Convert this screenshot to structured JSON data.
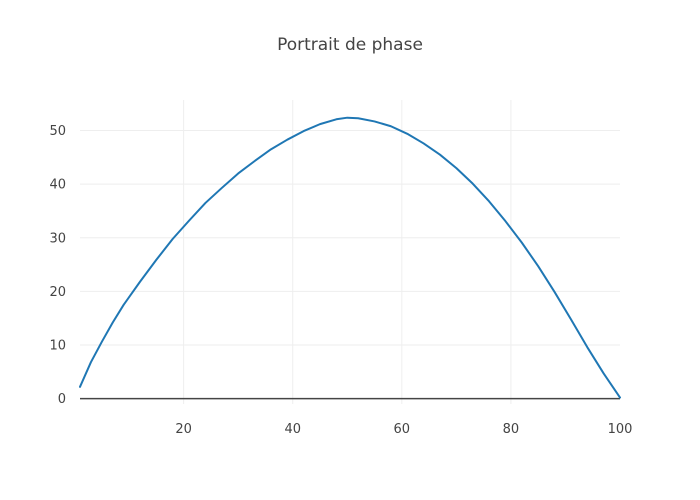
{
  "chart_data": {
    "type": "line",
    "title": "Portrait de phase",
    "xlabel": "",
    "ylabel": "",
    "xlim": [
      1,
      100
    ],
    "ylim": [
      -1,
      55.7
    ],
    "x_ticks": [
      20,
      40,
      60,
      80,
      100
    ],
    "y_ticks": [
      0,
      10,
      20,
      30,
      40,
      50
    ],
    "grid": true,
    "legend": "none",
    "series": [
      {
        "color": "#1f77b4",
        "x": [
          1,
          3,
          5,
          7,
          9,
          12,
          15,
          18,
          21,
          24,
          27,
          30,
          33,
          36,
          39,
          42,
          45,
          48,
          50,
          52,
          55,
          58,
          61,
          64,
          67,
          70,
          73,
          76,
          79,
          82,
          85,
          88,
          91,
          94,
          97,
          100
        ],
        "y": [
          2.2,
          6.8,
          10.6,
          14.2,
          17.5,
          21.8,
          25.9,
          29.8,
          33.2,
          36.5,
          39.3,
          42.0,
          44.3,
          46.5,
          48.3,
          49.9,
          51.2,
          52.1,
          52.4,
          52.3,
          51.7,
          50.8,
          49.4,
          47.6,
          45.5,
          43.0,
          40.1,
          36.8,
          33.1,
          29.1,
          24.7,
          19.9,
          14.8,
          9.6,
          4.7,
          0.2
        ]
      }
    ]
  }
}
